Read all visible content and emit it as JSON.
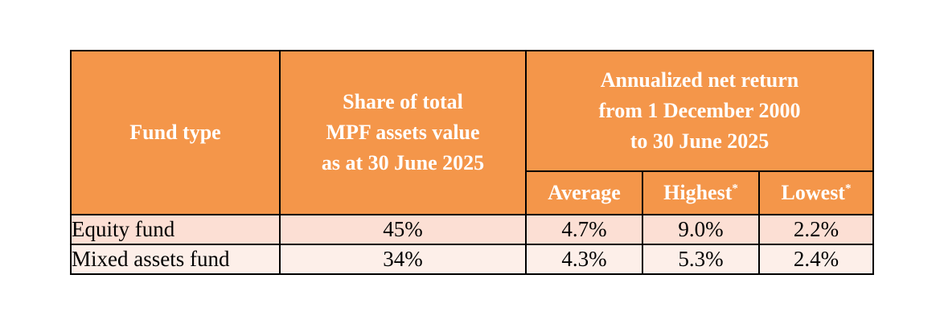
{
  "table": {
    "headers": {
      "fund_type": "Fund type",
      "share": [
        "Share of total",
        "MPF assets value",
        "as at 30 June 2025"
      ],
      "return_group": [
        "Annualized net return",
        "from 1 December 2000",
        "to 30 June 2025"
      ],
      "average": "Average",
      "highest": "Highest",
      "lowest": "Lowest",
      "footnote_marker": "*"
    },
    "rows": [
      {
        "fund_type": "Equity fund",
        "share": "45%",
        "average": "4.7%",
        "highest": "9.0%",
        "lowest": "2.2%"
      },
      {
        "fund_type": "Mixed assets fund",
        "share": "34%",
        "average": "4.3%",
        "highest": "5.3%",
        "lowest": "2.4%"
      }
    ],
    "colors": {
      "header_bg": "#f4964a",
      "header_text": "#ffffff",
      "row1_bg": "#fcdfd4",
      "row2_bg": "#fdefe9"
    }
  }
}
